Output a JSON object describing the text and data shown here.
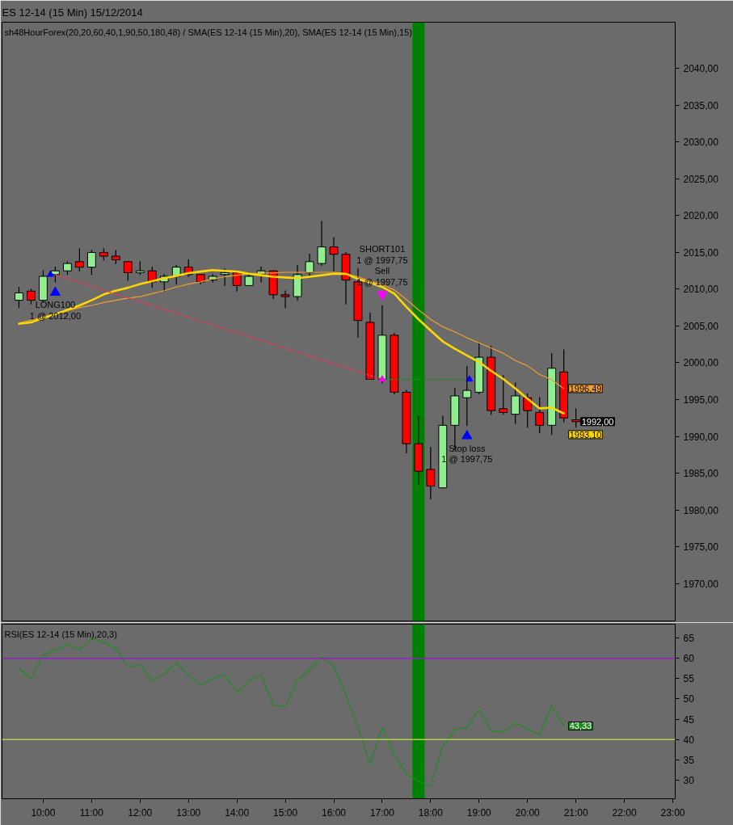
{
  "chart_data": [
    {
      "type": "candlestick",
      "title": "ES 12-14 (15 Min)  15/12/2014",
      "subtitle": "sh48HourForex(20,20,60,40,1,90,50,180,48) / SMA(ES 12-14 (15 Min),20), SMA(ES 12-14 (15 Min),15)",
      "x": [
        9.5,
        9.75,
        10,
        10.25,
        10.5,
        10.75,
        11,
        11.25,
        11.5,
        11.75,
        12,
        12.25,
        12.5,
        12.75,
        13,
        13.25,
        13.5,
        13.75,
        14,
        14.25,
        14.5,
        14.75,
        15,
        15.25,
        15.5,
        15.75,
        16,
        16.25,
        16.5,
        16.75,
        17,
        17.25,
        17.5,
        17.75,
        18,
        18.25,
        18.5,
        18.75,
        19,
        19.25,
        19.5,
        19.75,
        20,
        20.25,
        20.5,
        20.75,
        21
      ],
      "ohlc": [
        [
          2008.5,
          2010.25,
          2007.5,
          2009.5
        ],
        [
          2009.75,
          2010,
          2008,
          2008.5
        ],
        [
          2008.5,
          2012.5,
          2008.25,
          2011.75
        ],
        [
          2012,
          2013,
          2011,
          2012.5
        ],
        [
          2012.5,
          2013.75,
          2012,
          2013.5
        ],
        [
          2013.75,
          2015.5,
          2012.5,
          2013
        ],
        [
          2013,
          2015.25,
          2012,
          2015
        ],
        [
          2015,
          2015.5,
          2014,
          2014.5
        ],
        [
          2014.5,
          2015.25,
          2013.5,
          2014
        ],
        [
          2013.75,
          2013.75,
          2011.25,
          2012.25
        ],
        [
          2012.25,
          2013.75,
          2012,
          2012.5
        ],
        [
          2012.5,
          2013,
          2010.25,
          2011
        ],
        [
          2011,
          2012,
          2009.75,
          2011.75
        ],
        [
          2011.75,
          2013.25,
          2010.75,
          2013
        ],
        [
          2013,
          2014,
          2011.75,
          2012
        ],
        [
          2012,
          2012,
          2010.75,
          2011
        ],
        [
          2011.25,
          2012,
          2011,
          2011.75
        ],
        [
          2012,
          2012.75,
          2010.5,
          2012.25
        ],
        [
          2012.25,
          2012.5,
          2009.75,
          2010.5
        ],
        [
          2010.5,
          2012,
          2010.5,
          2011.75
        ],
        [
          2012,
          2013,
          2011,
          2012.5
        ],
        [
          2012.5,
          2012.5,
          2008.75,
          2009.25
        ],
        [
          2009.25,
          2009.75,
          2007.5,
          2009
        ],
        [
          2009,
          2013.25,
          2008.5,
          2012
        ],
        [
          2012.25,
          2014.75,
          2011.75,
          2013.75
        ],
        [
          2013.5,
          2019.25,
          2013.25,
          2015.75
        ],
        [
          2015.75,
          2017,
          2012.5,
          2014.75
        ],
        [
          2014.75,
          2015,
          2008,
          2011.25
        ],
        [
          2011,
          2012.75,
          2003.5,
          2005.75
        ],
        [
          2005.5,
          2006.75,
          1997.75,
          1997.75
        ],
        [
          1997.75,
          2007.75,
          1997.25,
          2003.75
        ],
        [
          2003.75,
          2004,
          1995.75,
          1996
        ],
        [
          1996,
          1996.25,
          1987.75,
          1989
        ],
        [
          1989,
          1992.75,
          1983.5,
          1985.25
        ],
        [
          1985.5,
          1988.5,
          1981.5,
          1983.25
        ],
        [
          1983,
          1992.75,
          1983,
          1991.5
        ],
        [
          1991.5,
          1996.5,
          1988.25,
          1995.5
        ],
        [
          1995.25,
          1999.5,
          1991.5,
          1996.25
        ],
        [
          1996,
          2002.75,
          1995.75,
          2000.75
        ],
        [
          2000.75,
          2002.25,
          1993,
          1993.5
        ],
        [
          1993.75,
          1998.25,
          1993,
          1993.25
        ],
        [
          1993,
          1997.25,
          1991.75,
          1995.5
        ],
        [
          1995.25,
          1995.75,
          1991.25,
          1993.5
        ],
        [
          1993.25,
          1995.25,
          1990.5,
          1991.5
        ],
        [
          1991.5,
          2001.25,
          1990.25,
          1999.25
        ],
        [
          1998.75,
          2001.75,
          1992,
          1992.5
        ],
        [
          1992.25,
          1993.75,
          1991.25,
          1992
        ]
      ],
      "colors": [
        "#90ee90",
        "#ff0000",
        "#90ee90",
        "#90ee90",
        "#90ee90",
        "#ff0000",
        "#90ee90",
        "#ff0000",
        "#ff0000",
        "#ff0000",
        "#90ee90",
        "#ff0000",
        "#90ee90",
        "#90ee90",
        "#ff0000",
        "#ff0000",
        "#90ee90",
        "#90ee90",
        "#ff0000",
        "#90ee90",
        "#90ee90",
        "#ff0000",
        "#ff0000",
        "#90ee90",
        "#90ee90",
        "#90ee90",
        "#ff0000",
        "#ff0000",
        "#ff0000",
        "#ff0000",
        "#90ee90",
        "#ff0000",
        "#ff0000",
        "#ff0000",
        "#ff0000",
        "#90ee90",
        "#90ee90",
        "#90ee90",
        "#90ee90",
        "#ff0000",
        "#ff0000",
        "#90ee90",
        "#ff0000",
        "#ff0000",
        "#90ee90",
        "#ff0000",
        "#ff0000"
      ],
      "value_labels": [
        null,
        null,
        null,
        null,
        null,
        null,
        null,
        null,
        null,
        null,
        null,
        null,
        null,
        null,
        null,
        null,
        null,
        null,
        null,
        null,
        null,
        null,
        null,
        null,
        null,
        null,
        null,
        null,
        null,
        null,
        null,
        null,
        null,
        null,
        null,
        null,
        null,
        null,
        null,
        null,
        null,
        null,
        null,
        null,
        null,
        null,
        "1992,00"
      ],
      "series": [
        {
          "type": "line",
          "color": "#f0a030",
          "x": [
            9.5,
            9.75,
            10,
            10.25,
            10.5,
            10.75,
            11,
            11.25,
            11.5,
            11.75,
            12,
            12.25,
            12.5,
            12.75,
            13,
            13.25,
            13.5,
            13.75,
            14,
            14.25,
            14.5,
            14.75,
            15,
            15.25,
            15.5,
            15.75,
            16,
            16.25,
            16.5,
            16.75,
            17,
            17.25,
            17.5,
            17.75,
            18,
            18.25,
            18.5,
            18.75,
            19,
            19.25,
            19.5,
            19.75,
            20,
            20.25,
            20.5,
            20.75
          ],
          "values": [
            2005.4,
            2005.8,
            2006.2,
            2006.7,
            2007.1,
            2007.5,
            2007.8,
            2008.2,
            2008.5,
            2008.8,
            2009.0,
            2009.4,
            2009.8,
            2010.3,
            2010.7,
            2011.0,
            2011.4,
            2011.7,
            2011.9,
            2012.1,
            2012.2,
            2012.2,
            2012.3,
            2012.3,
            2012.3,
            2012.3,
            2012.3,
            2012.1,
            2011.7,
            2011.1,
            2010.6,
            2009.9,
            2008.6,
            2007.2,
            2005.9,
            2004.9,
            2004.2,
            2003.4,
            2002.7,
            2002.0,
            2001.3,
            2000.3,
            1999.6,
            1998.4,
            1997.7,
            1996.49
          ],
          "value_labels": [
            null,
            null,
            null,
            null,
            null,
            null,
            null,
            null,
            null,
            null,
            null,
            null,
            null,
            null,
            null,
            null,
            null,
            null,
            null,
            null,
            null,
            null,
            null,
            null,
            null,
            null,
            null,
            null,
            null,
            null,
            null,
            null,
            null,
            null,
            null,
            null,
            null,
            null,
            null,
            null,
            null,
            null,
            null,
            null,
            null,
            "1996,49"
          ]
        },
        {
          "type": "line",
          "color": "#ffd700",
          "x": [
            9.5,
            9.75,
            10,
            10.25,
            10.5,
            10.75,
            11,
            11.25,
            11.5,
            11.75,
            12,
            12.25,
            12.5,
            12.75,
            13,
            13.25,
            13.5,
            13.75,
            14,
            14.25,
            14.5,
            14.75,
            15,
            15.25,
            15.5,
            15.75,
            16,
            16.25,
            16.5,
            16.75,
            17,
            17.25,
            17.5,
            17.75,
            18,
            18.25,
            18.5,
            18.75,
            19,
            19.25,
            19.5,
            19.75,
            20,
            20.25,
            20.5,
            20.75
          ],
          "values": [
            2005.3,
            2005.5,
            2006.1,
            2006.6,
            2007.2,
            2007.8,
            2008.5,
            2009.3,
            2009.8,
            2010.2,
            2010.7,
            2011.1,
            2011.5,
            2011.8,
            2012.2,
            2012.4,
            2012.6,
            2012.5,
            2012.4,
            2012.1,
            2011.9,
            2011.7,
            2011.6,
            2011.5,
            2011.7,
            2011.9,
            2012.1,
            2012.1,
            2011.4,
            2010.9,
            2010.3,
            2009.4,
            2007.6,
            2005.9,
            2004.4,
            2002.9,
            2001.9,
            2001.0,
            2000.1,
            1998.9,
            1997.8,
            1996.5,
            1995.1,
            1993.8,
            1993.9,
            1993.1
          ],
          "value_labels": [
            null,
            null,
            null,
            null,
            null,
            null,
            null,
            null,
            null,
            null,
            null,
            null,
            null,
            null,
            null,
            null,
            null,
            null,
            null,
            null,
            null,
            null,
            null,
            null,
            null,
            null,
            null,
            null,
            null,
            null,
            null,
            null,
            null,
            null,
            null,
            null,
            null,
            null,
            null,
            null,
            null,
            null,
            null,
            null,
            null,
            "1993,10"
          ]
        },
        {
          "type": "line",
          "color": "#dc3c5a",
          "line_style": "dotted",
          "x": [
            10.25,
            17
          ],
          "values": [
            2012,
            1997.75
          ]
        },
        {
          "type": "line",
          "color": "#1a8a1a",
          "line_style": "dotted",
          "x": [
            17,
            18.75
          ],
          "values": [
            1997.75,
            1997.75
          ]
        },
        {
          "type": "scatter",
          "marker": "triangle",
          "colors": [
            "#0000ff",
            "#ff00ff",
            "#0000ff"
          ],
          "x": [
            10.15,
            17,
            18.8
          ],
          "values": [
            2012,
            1997.75,
            1997.75
          ]
        },
        {
          "type": "scatter",
          "marker": "triangle",
          "colors": [
            "#0000ff",
            "#ff00ff",
            "#0000ff"
          ],
          "x": [
            10.25,
            17,
            18.75
          ],
          "values": [
            2009.55,
            2009.3,
            1990.05
          ]
        }
      ],
      "annotations": [
        {
          "text": "LONG100\n1 @ 2012,00",
          "x": 10.25,
          "y": 2009.55
        },
        {
          "text": "SHORT101\n1 @ 1997,75\nSell\n1 @ 1997,75",
          "x": 17,
          "y": 2009.3
        },
        {
          "text": "Stop loss\n1 @ 1997,75",
          "x": 18.75,
          "y": 1990.05
        }
      ],
      "bands": [
        {
          "axis": "x",
          "from": 17.625,
          "to": 17.875,
          "color": "#008000"
        }
      ],
      "xlim": [
        9.15,
        23.05
      ],
      "ylim": [
        1964.9,
        2046.3
      ],
      "yticks": [
        {
          "value": 1970,
          "label": "1970,00"
        },
        {
          "value": 1975,
          "label": "1975,00"
        },
        {
          "value": 1980,
          "label": "1980,00"
        },
        {
          "value": 1985,
          "label": "1985,00"
        },
        {
          "value": 1990,
          "label": "1990,00"
        },
        {
          "value": 1995,
          "label": "1995,00"
        },
        {
          "value": 2000,
          "label": "2000,00"
        },
        {
          "value": 2005,
          "label": "2005,00"
        },
        {
          "value": 2010,
          "label": "2010,00"
        },
        {
          "value": 2015,
          "label": "2015,00"
        },
        {
          "value": 2020,
          "label": "2020,00"
        },
        {
          "value": 2025,
          "label": "2025,00"
        },
        {
          "value": 2030,
          "label": "2030,00"
        },
        {
          "value": 2035,
          "label": "2035,00"
        },
        {
          "value": 2040,
          "label": "2040,00"
        }
      ],
      "tick_labels": "y"
    },
    {
      "type": "line",
      "title": "RSI(ES 12-14 (15 Min),20,3)",
      "x": [
        9.5,
        9.75,
        10,
        10.25,
        10.5,
        10.75,
        11,
        11.25,
        11.5,
        11.75,
        12,
        12.25,
        12.5,
        12.75,
        13,
        13.25,
        13.5,
        13.75,
        14,
        14.25,
        14.5,
        14.75,
        15,
        15.25,
        15.5,
        15.75,
        16,
        16.25,
        16.5,
        16.75,
        17,
        17.25,
        17.5,
        17.75,
        18,
        18.25,
        18.5,
        18.75,
        19,
        19.25,
        19.5,
        19.75,
        20,
        20.25,
        20.5,
        20.75
      ],
      "series": [
        {
          "color": "#1e8c1e",
          "values": [
            57.6,
            55.0,
            60.8,
            62.0,
            63.4,
            62.2,
            64.8,
            63.9,
            62.5,
            57.9,
            58.4,
            54.5,
            56.1,
            58.9,
            55.8,
            53.3,
            55.0,
            55.9,
            51.6,
            54.4,
            55.9,
            48.5,
            48.1,
            54.6,
            57.1,
            60.4,
            58.1,
            51.0,
            43.0,
            33.9,
            43.0,
            36.3,
            31.4,
            29.7,
            28.4,
            38.3,
            42.4,
            43.0,
            47.3,
            42.0,
            41.9,
            44.0,
            42.7,
            41.1,
            48.3,
            43.33
          ],
          "value_labels": [
            null,
            null,
            null,
            null,
            null,
            null,
            null,
            null,
            null,
            null,
            null,
            null,
            null,
            null,
            null,
            null,
            null,
            null,
            null,
            null,
            null,
            null,
            null,
            null,
            null,
            null,
            null,
            null,
            null,
            null,
            null,
            null,
            null,
            null,
            null,
            null,
            null,
            null,
            null,
            null,
            null,
            null,
            null,
            null,
            null,
            "43,33"
          ]
        }
      ],
      "ref_lines": [
        {
          "axis": "y",
          "value": 60,
          "color": "#9020c0"
        },
        {
          "axis": "y",
          "value": 40,
          "color": "#b4d050"
        }
      ],
      "bands": [
        {
          "axis": "x",
          "from": 17.625,
          "to": 17.875,
          "color": "#008000"
        }
      ],
      "xlim": [
        9.15,
        23.05
      ],
      "ylim": [
        25.4,
        68.4
      ],
      "yticks": [
        30,
        35,
        40,
        45,
        50,
        55,
        60,
        65
      ],
      "xticks": [
        {
          "value": 10,
          "label": "10:00"
        },
        {
          "value": 11,
          "label": "11:00"
        },
        {
          "value": 12,
          "label": "12:00"
        },
        {
          "value": 13,
          "label": "13:00"
        },
        {
          "value": 14,
          "label": "14:00"
        },
        {
          "value": 15,
          "label": "15:00"
        },
        {
          "value": 16,
          "label": "16:00"
        },
        {
          "value": 17,
          "label": "17:00"
        },
        {
          "value": 18,
          "label": "18:00"
        },
        {
          "value": 19,
          "label": "19:00"
        },
        {
          "value": 20,
          "label": "20:00"
        },
        {
          "value": 21,
          "label": "21:00"
        },
        {
          "value": 22,
          "label": "22:00"
        },
        {
          "value": 23,
          "label": "23:00"
        }
      ]
    }
  ]
}
